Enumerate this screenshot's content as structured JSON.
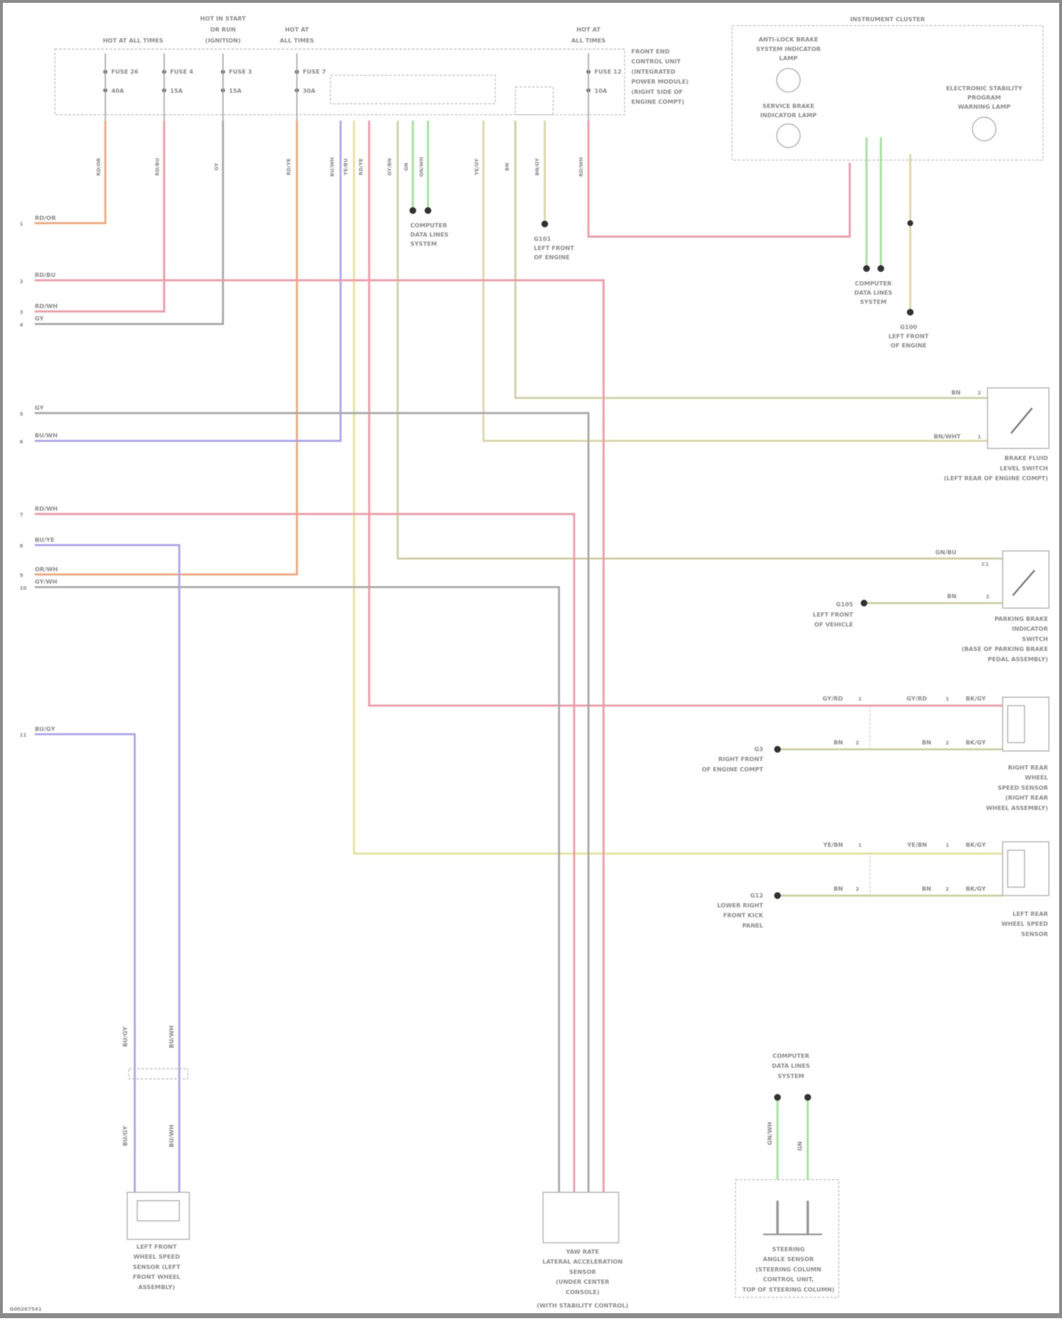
{
  "colors": {
    "orange": "#f4a77a",
    "red": "#f29aa6",
    "gray": "#a9a9a9",
    "blue": "#a9a6f2",
    "yellow": "#e6e39a",
    "green": "#9fe39a",
    "tan": "#dcd6a6",
    "olive": "#cfcfa2"
  },
  "power": {
    "h1": [
      "HOT AT ALL TIMES"
    ],
    "h2": [
      "HOT IN START",
      "OR RUN",
      "(IGNITION)"
    ],
    "h3": [
      "HOT AT",
      "ALL TIMES"
    ],
    "h4": [
      "HOT AT",
      "ALL TIMES"
    ]
  },
  "front_end_module": [
    "FRONT END",
    "CONTROL UNIT",
    "(INTEGRATED",
    "POWER MODULE)",
    "(RIGHT SIDE OF",
    "ENGINE COMPT)"
  ],
  "fuses": [
    {
      "name": "FUSE 26",
      "rating": "40A"
    },
    {
      "name": "FUSE 4",
      "rating": "15A"
    },
    {
      "name": "FUSE 3",
      "rating": "15A"
    },
    {
      "name": "FUSE 7",
      "rating": "30A"
    },
    {
      "name": "FUSE 12",
      "rating": "10A"
    }
  ],
  "cluster": {
    "title": "INSTRUMENT CLUSTER",
    "abs_lamp": [
      "ANTI-LOCK BRAKE",
      "SYSTEM INDICATOR",
      "LAMP"
    ],
    "brake_lamp": [
      "SERVICE BRAKE",
      "INDICATOR LAMP"
    ],
    "esp_lamp": [
      "ELECTRONIC STABILITY",
      "PROGRAM",
      "WARNING LAMP"
    ],
    "bus_label": [
      "COMPUTER",
      "DATA LINES",
      "SYSTEM"
    ],
    "ground_label": [
      "G100",
      "LEFT FRONT",
      "OF ENGINE"
    ]
  },
  "left_pins": [
    {
      "pin": "1",
      "wire": "RD/OR"
    },
    {
      "pin": "2",
      "wire": "RD/BU"
    },
    {
      "pin": "3",
      "wire": "RD/WH"
    },
    {
      "pin": "4",
      "wire": "GY"
    },
    {
      "pin": "5",
      "wire": "GY"
    },
    {
      "pin": "6",
      "wire": "BU/WH"
    },
    {
      "pin": "7",
      "wire": "RD/WH"
    },
    {
      "pin": "8",
      "wire": "BU/YE"
    },
    {
      "pin": "9",
      "wire": "OR/WH"
    },
    {
      "pin": "10",
      "wire": "GY/WH"
    },
    {
      "pin": "11",
      "wire": "BU/GY"
    }
  ],
  "top_wires": [
    "RD/OR",
    "RD/BU",
    "GY",
    "RD/YE",
    "BU/WH",
    "YE/BU",
    "RD/YE",
    "GY/BN",
    "GN",
    "GN/WH",
    "YE/GY",
    "BN",
    "BN/GY",
    "RD/WH"
  ],
  "data_bus_label": [
    "COMPUTER",
    "DATA LINES",
    "SYSTEM"
  ],
  "ground_g101": [
    "G101",
    "LEFT FRONT",
    "OF ENGINE"
  ],
  "brake_fluid_switch": {
    "wires": [
      "BN",
      "BN/WHT"
    ],
    "pins": [
      "2",
      "1"
    ],
    "label": [
      "BRAKE FLUID",
      "LEVEL SWITCH",
      "(LEFT REAR OF ENGINE COMPT)"
    ]
  },
  "parking_brake_switch": {
    "wires": [
      "GN/BU",
      "BN"
    ],
    "pins": [
      "C1",
      "2"
    ],
    "ground": [
      "G105",
      "LEFT FRONT",
      "OF VEHICLE"
    ],
    "label": [
      "PARKING BRAKE",
      "INDICATOR",
      "SWITCH",
      "(BASE OF PARKING BRAKE",
      "PEDAL ASSEMBLY)"
    ]
  },
  "right_rear_sensor": {
    "wires": [
      "GY/RD",
      "GY/RD",
      "BK/GY",
      "BN",
      "BN",
      "BK/GY"
    ],
    "pins": [
      "1",
      "1",
      "2",
      "2"
    ],
    "ground": [
      "G3",
      "RIGHT FRONT",
      "OF ENGINE COMPT"
    ],
    "label": [
      "RIGHT REAR",
      "WHEEL",
      "SPEED SENSOR",
      "(RIGHT REAR",
      "WHEEL ASSEMBLY)"
    ]
  },
  "left_rear_sensor": {
    "wires": [
      "YE/BN",
      "YE/BN",
      "BK/GY",
      "BN",
      "BN",
      "BK/GY"
    ],
    "pins": [
      "1",
      "1",
      "2",
      "2"
    ],
    "ground": [
      "G12",
      "LOWER RIGHT",
      "FRONT KICK",
      "PANEL"
    ],
    "label": [
      "LEFT REAR",
      "WHEEL SPEED",
      "SENSOR"
    ]
  },
  "left_front_sensor": {
    "wires": [
      "BU/GY",
      "BU/GY",
      "BU/WH",
      "BU/WH"
    ],
    "label": [
      "LEFT FRONT",
      "WHEEL SPEED",
      "SENSOR (LEFT",
      "FRONT WHEEL",
      "ASSEMBLY)"
    ]
  },
  "yaw_sensor": {
    "label": [
      "YAW RATE",
      "LATERAL ACCELERATION",
      "SENSOR",
      "(UNDER CENTER",
      "CONSOLE)"
    ],
    "caption": "(WITH STABILITY CONTROL)"
  },
  "steering_sensor": {
    "top_label": [
      "COMPUTER",
      "DATA LINES",
      "SYSTEM"
    ],
    "wires": [
      "GN/WH",
      "GN"
    ],
    "label": [
      "STEERING",
      "ANGLE SENSOR",
      "(STEERING COLUMN",
      "CONTROL UNIT,",
      "TOP OF STEERING COLUMN)"
    ]
  },
  "footer": "G00267541"
}
